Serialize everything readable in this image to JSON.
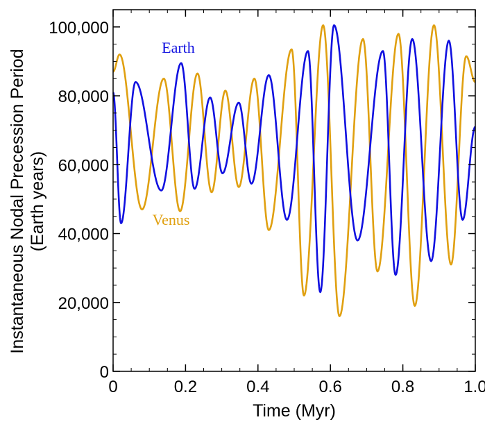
{
  "chart_data": {
    "type": "line",
    "title": "",
    "xlabel": "Time (Myr)",
    "ylabel": [
      "Instantaneous Nodal Precession Period",
      "(Earth years)"
    ],
    "xlim": [
      0,
      1.0
    ],
    "ylim": [
      0,
      105000
    ],
    "xticks": [
      0,
      0.2,
      0.4,
      0.6,
      0.8,
      1.0
    ],
    "xtick_labels": [
      "0",
      "0.2",
      "0.4",
      "0.6",
      "0.8",
      "1.0"
    ],
    "yticks": [
      0,
      20000,
      40000,
      60000,
      80000,
      100000
    ],
    "ytick_labels": [
      "0",
      "20,000",
      "40,000",
      "60,000",
      "80,000",
      "100,000"
    ],
    "grid": false,
    "legend": "inline labels",
    "series": [
      {
        "name": "Earth",
        "color": "#1010e0",
        "extrema": [
          [
            0.0,
            81000
          ],
          [
            0.022,
            43000
          ],
          [
            0.062,
            84000
          ],
          [
            0.133,
            52500
          ],
          [
            0.188,
            89500
          ],
          [
            0.225,
            53000
          ],
          [
            0.268,
            79500
          ],
          [
            0.302,
            57500
          ],
          [
            0.347,
            78000
          ],
          [
            0.382,
            54500
          ],
          [
            0.43,
            86000
          ],
          [
            0.48,
            44000
          ],
          [
            0.538,
            93000
          ],
          [
            0.572,
            23000
          ],
          [
            0.61,
            100500
          ],
          [
            0.675,
            38000
          ],
          [
            0.745,
            93000
          ],
          [
            0.78,
            28000
          ],
          [
            0.826,
            96500
          ],
          [
            0.878,
            32000
          ],
          [
            0.927,
            96000
          ],
          [
            0.965,
            44000
          ],
          [
            1.0,
            71000
          ]
        ]
      },
      {
        "name": "Venus",
        "color": "#e0a010",
        "extrema": [
          [
            0.0,
            87000
          ],
          [
            0.018,
            92000
          ],
          [
            0.08,
            47000
          ],
          [
            0.14,
            85000
          ],
          [
            0.185,
            46500
          ],
          [
            0.233,
            86500
          ],
          [
            0.272,
            52000
          ],
          [
            0.31,
            81500
          ],
          [
            0.347,
            53500
          ],
          [
            0.39,
            85000
          ],
          [
            0.43,
            41000
          ],
          [
            0.493,
            93500
          ],
          [
            0.527,
            22000
          ],
          [
            0.58,
            100500
          ],
          [
            0.625,
            16000
          ],
          [
            0.69,
            96500
          ],
          [
            0.73,
            29000
          ],
          [
            0.788,
            98000
          ],
          [
            0.833,
            19000
          ],
          [
            0.886,
            100500
          ],
          [
            0.933,
            31000
          ],
          [
            0.975,
            91500
          ],
          [
            1.0,
            84000
          ]
        ]
      }
    ],
    "annotations": [
      {
        "text": "Earth",
        "x": 0.18,
        "y": 92500,
        "color": "#1010e0"
      },
      {
        "text": "Venus",
        "x": 0.16,
        "y": 42500,
        "color": "#e0a010"
      }
    ]
  }
}
